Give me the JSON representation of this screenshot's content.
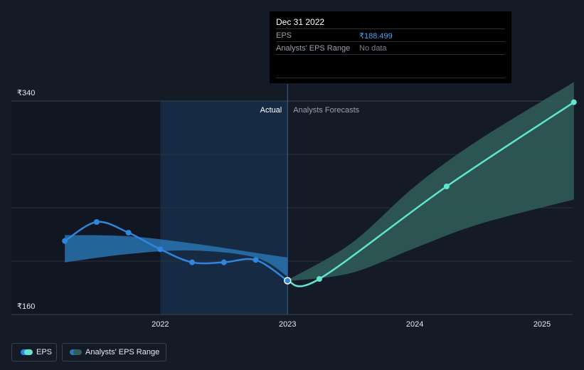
{
  "tooltip": {
    "date": "Dec 31 2022",
    "eps_label": "EPS",
    "eps_value": "₹188.499",
    "range_label": "Analysts' EPS Range",
    "range_value": "No data"
  },
  "legend": {
    "eps_label": "EPS",
    "range_label": "Analysts' EPS Range"
  },
  "colors": {
    "eps": "#2e86de",
    "forecast": "#63e3d1",
    "range_fill": "#2a78b8",
    "forecast_range_fill": "#2f5e5b"
  },
  "chart_data": {
    "type": "line",
    "region_labels": {
      "actual": "Actual",
      "forecast": "Analysts Forecasts"
    },
    "ylim": [
      160,
      340
    ],
    "y_tick_labels": [
      "₹340",
      "₹160"
    ],
    "x_ticks": [
      {
        "x": 2022.0,
        "label": "2022"
      },
      {
        "x": 2023.0,
        "label": "2023"
      },
      {
        "x": 2024.0,
        "label": "2024"
      },
      {
        "x": 2025.0,
        "label": "2025"
      }
    ],
    "xlim": [
      2020.83,
      2025.24
    ],
    "divider_x": 2023.0,
    "series": [
      {
        "name": "EPS",
        "kind": "actual",
        "points": [
          [
            2021.25,
            222
          ],
          [
            2021.5,
            238
          ],
          [
            2021.75,
            229
          ],
          [
            2022.0,
            215
          ],
          [
            2022.25,
            204
          ],
          [
            2022.5,
            204
          ],
          [
            2022.75,
            206
          ],
          [
            2023.0,
            188.5
          ]
        ]
      },
      {
        "name": "EPS",
        "kind": "forecast",
        "points": [
          [
            2023.0,
            188.5
          ],
          [
            2023.25,
            190
          ],
          [
            2024.25,
            268
          ],
          [
            2025.25,
            339
          ]
        ]
      }
    ],
    "ranges": [
      {
        "name": "Analysts' EPS Range",
        "kind": "actual",
        "x": [
          2021.25,
          2021.75,
          2022.25,
          2022.75,
          2023.0
        ],
        "low": [
          204,
          211,
          214,
          208,
          192
        ],
        "high": [
          227,
          226,
          220,
          212,
          208
        ]
      },
      {
        "name": "Analysts' EPS Range",
        "kind": "forecast",
        "x": [
          2023.0,
          2023.5,
          2024.0,
          2024.5,
          2025.25
        ],
        "low": [
          188,
          195,
          216,
          236,
          257
        ],
        "high": [
          189,
          220,
          268,
          307,
          356
        ]
      }
    ]
  }
}
